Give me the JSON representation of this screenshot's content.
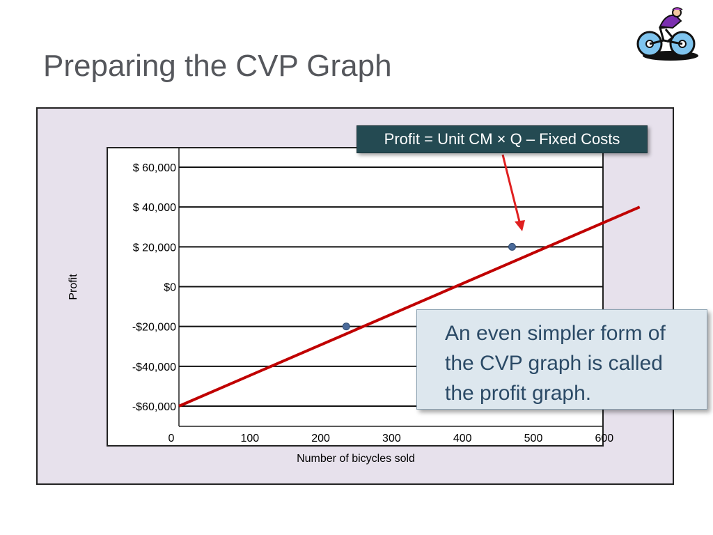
{
  "slide": {
    "title": "Preparing the CVP Graph"
  },
  "icons": {
    "decoration": "cyclist-icon"
  },
  "formula_box": {
    "text": "Profit = Unit CM × Q – Fixed Costs"
  },
  "callout": {
    "text": "An even simpler form of the CVP graph is called the profit graph."
  },
  "colors": {
    "profit_line": "#c00000",
    "arrow": "#e02020",
    "point": "#4a6a9a",
    "frame_bg": "#e7e1ec",
    "formula_bg": "#244a52",
    "callout_bg": "#dde7ee",
    "callout_text": "#2b4a66"
  },
  "chart_data": {
    "type": "line",
    "title": "",
    "xlabel": "Number of bicycles sold",
    "ylabel": "Profit",
    "xlim": [
      0,
      650
    ],
    "ylim": [
      -60000,
      60000
    ],
    "x_ticks": [
      0,
      100,
      200,
      300,
      400,
      500,
      600
    ],
    "x_tick_labels": [
      "0",
      "100",
      "200",
      "300",
      "400",
      "500",
      "600"
    ],
    "y_ticks": [
      60000,
      40000,
      20000,
      0,
      -20000,
      -40000,
      -60000
    ],
    "y_tick_labels": [
      "$  60,000",
      "$  40,000",
      "$  20,000",
      "$0",
      "-$20,000",
      "-$40,000",
      "-$60,000"
    ],
    "grid": "horizontal",
    "series": [
      {
        "x": [
          0,
          650
        ],
        "y": [
          -60000,
          40000
        ]
      }
    ],
    "points": [
      {
        "x": 236,
        "y": -20000
      },
      {
        "x": 470,
        "y": 20000
      }
    ]
  }
}
